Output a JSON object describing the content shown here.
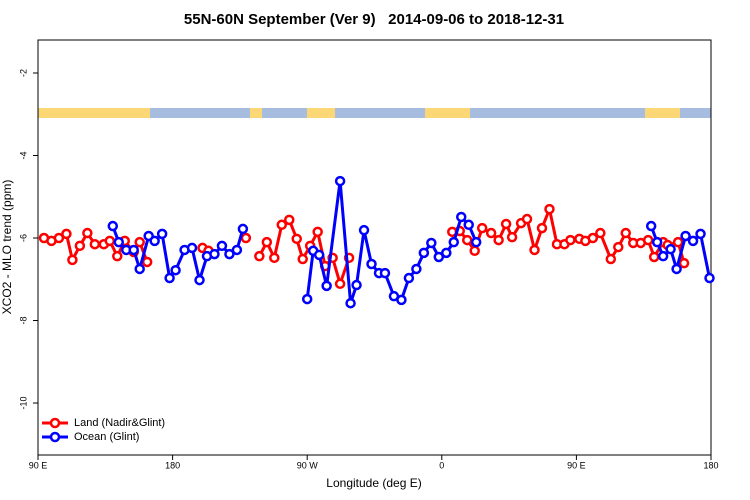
{
  "chart_data": {
    "type": "line",
    "title": "55N-60N September (Ver 9)   2014-09-06 to 2018-12-31",
    "x_label": "Longitude (deg E)",
    "y_label": "XCO2 - MLO trend (ppm)",
    "xlim": [
      90,
      540
    ],
    "ylim": [
      -11.26,
      -1.2
    ],
    "xticks": [
      {
        "value": 90,
        "label": "90 E"
      },
      {
        "value": 180,
        "label": "180"
      },
      {
        "value": 270,
        "label": "90 W"
      },
      {
        "value": 360,
        "label": "0"
      },
      {
        "value": 450,
        "label": "90 E"
      },
      {
        "value": 540,
        "label": "180"
      }
    ],
    "yticks": [
      -2,
      -4,
      -6,
      -8,
      -10
    ],
    "legend": "bottom-left",
    "series": [
      {
        "name": "Land (Nadir&Glint)",
        "color": "#ff0000",
        "x": [
          94,
          99,
          104,
          109,
          113,
          118,
          123,
          128,
          134,
          138,
          143,
          148,
          154,
          158,
          163,
          null,
          200,
          204,
          null,
          229,
          null,
          238,
          243,
          248,
          253,
          258,
          263,
          267,
          272,
          277,
          282,
          287,
          292,
          298,
          null,
          367,
          372,
          377,
          382,
          387,
          393,
          398,
          403,
          407,
          413,
          417,
          422,
          427,
          432,
          437,
          442,
          446,
          452,
          456,
          461,
          466,
          473,
          478,
          483,
          488,
          493,
          498,
          502,
          508,
          511,
          518,
          522
        ],
        "values": [
          -6.0,
          -6.07,
          -6.0,
          -5.9,
          -6.53,
          -6.19,
          -5.88,
          -6.15,
          -6.15,
          -6.07,
          -6.44,
          -6.07,
          -6.34,
          -6.1,
          -6.58,
          null,
          -6.24,
          -6.31,
          null,
          -6.0,
          null,
          -6.44,
          -6.1,
          -6.48,
          -5.68,
          -5.56,
          -6.02,
          -6.51,
          -6.19,
          -5.85,
          -6.68,
          -6.48,
          -7.11,
          -6.48,
          null,
          -5.85,
          -5.83,
          -6.05,
          -6.31,
          -5.76,
          -5.88,
          -6.05,
          -5.66,
          -5.98,
          -5.64,
          -5.54,
          -6.29,
          -5.76,
          -5.3,
          -6.15,
          -6.15,
          -6.05,
          -6.02,
          -6.07,
          -6.0,
          -5.88,
          -6.51,
          -6.22,
          -5.88,
          -6.12,
          -6.12,
          -6.05,
          -6.46,
          -6.1,
          -6.17,
          -6.1,
          -6.61
        ]
      },
      {
        "name": "Ocean (Glint)",
        "color": "#0000ff",
        "x": [
          140,
          144,
          149,
          154,
          158,
          164,
          168,
          173,
          178,
          182,
          188,
          193,
          198,
          203,
          208,
          213,
          218,
          223,
          227,
          null,
          270,
          274,
          278,
          283,
          292,
          299,
          303,
          308,
          313,
          318,
          322,
          328,
          333,
          338,
          343,
          348,
          353,
          358,
          363,
          368,
          373,
          378,
          383,
          null,
          500,
          504,
          508,
          513,
          517,
          523,
          528,
          533,
          539
        ],
        "values": [
          -5.71,
          -6.1,
          -6.29,
          -6.29,
          -6.75,
          -5.95,
          -6.07,
          -5.9,
          -6.97,
          -6.78,
          -6.29,
          -6.24,
          -7.02,
          -6.44,
          -6.39,
          -6.19,
          -6.39,
          -6.29,
          -5.78,
          null,
          -7.48,
          -6.31,
          -6.41,
          -7.16,
          -4.62,
          -7.58,
          -7.14,
          -5.81,
          -6.63,
          -6.85,
          -6.85,
          -7.41,
          -7.5,
          -6.97,
          -6.75,
          -6.36,
          -6.12,
          -6.46,
          -6.36,
          -6.1,
          -5.49,
          -5.68,
          -6.1,
          null,
          -5.71,
          -6.1,
          -6.44,
          -6.27,
          -6.75,
          -5.95,
          -6.07,
          -5.9,
          -6.97
        ]
      }
    ]
  }
}
